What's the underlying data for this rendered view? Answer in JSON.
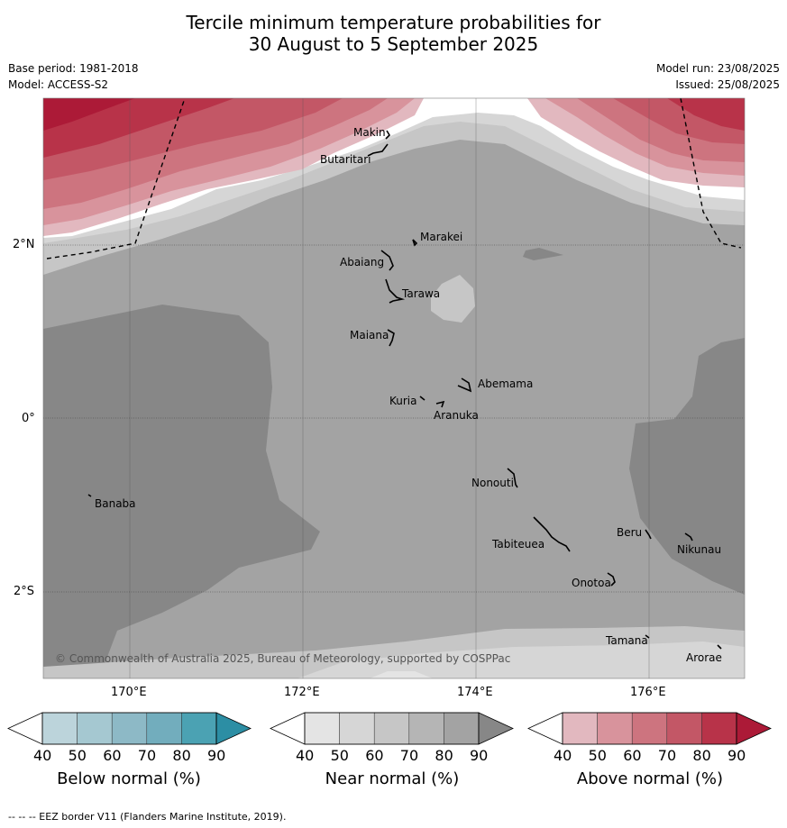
{
  "title": {
    "line1": "Tercile minimum temperature probabilities for",
    "line2": "30 August to 5 September 2025"
  },
  "meta": {
    "base_period": "Base period: 1981-2018",
    "model": "Model: ACCESS-S2",
    "model_run": "Model run: 23/08/2025",
    "issued": "Issued: 25/08/2025"
  },
  "axes": {
    "lat_labels": [
      "2°N",
      "0°",
      "2°S"
    ],
    "lon_labels": [
      "170°E",
      "172°E",
      "174°E",
      "176°E"
    ]
  },
  "places": [
    "Makin",
    "Butaritari",
    "Marakei",
    "Abaiang",
    "Tarawa",
    "Maiana",
    "Abemama",
    "Kuria",
    "Aranuka",
    "Banaba",
    "Nonouti",
    "Beru",
    "Tabiteuea",
    "Nikunau",
    "Onotoa",
    "Tamana",
    "Arorae"
  ],
  "copyright": "© Commonwealth of Australia 2025, Bureau of Meteorology, supported by COSPPac",
  "colorbars": [
    {
      "label": "Below normal (%)",
      "ticks": [
        "40",
        "50",
        "60",
        "70",
        "80",
        "90"
      ],
      "colors": [
        "#ffffff",
        "#bcd4db",
        "#a5c8d1",
        "#8db9c6",
        "#72adbd",
        "#4ba2b3",
        "#2c8ea4"
      ]
    },
    {
      "label": "Near normal (%)",
      "ticks": [
        "40",
        "50",
        "60",
        "70",
        "80",
        "90"
      ],
      "colors": [
        "#ffffff",
        "#e4e4e4",
        "#d6d6d6",
        "#c6c6c6",
        "#b5b5b5",
        "#a3a3a3",
        "#878787"
      ]
    },
    {
      "label": "Above normal (%)",
      "ticks": [
        "40",
        "50",
        "60",
        "70",
        "80",
        "90"
      ],
      "colors": [
        "#ffffff",
        "#e2b8bf",
        "#d8939c",
        "#cd747f",
        "#c35766",
        "#b83349",
        "#ac1a37"
      ]
    }
  ],
  "footer": "--  --  -- EEZ border V11 (Flanders Marine Institute, 2019)."
}
